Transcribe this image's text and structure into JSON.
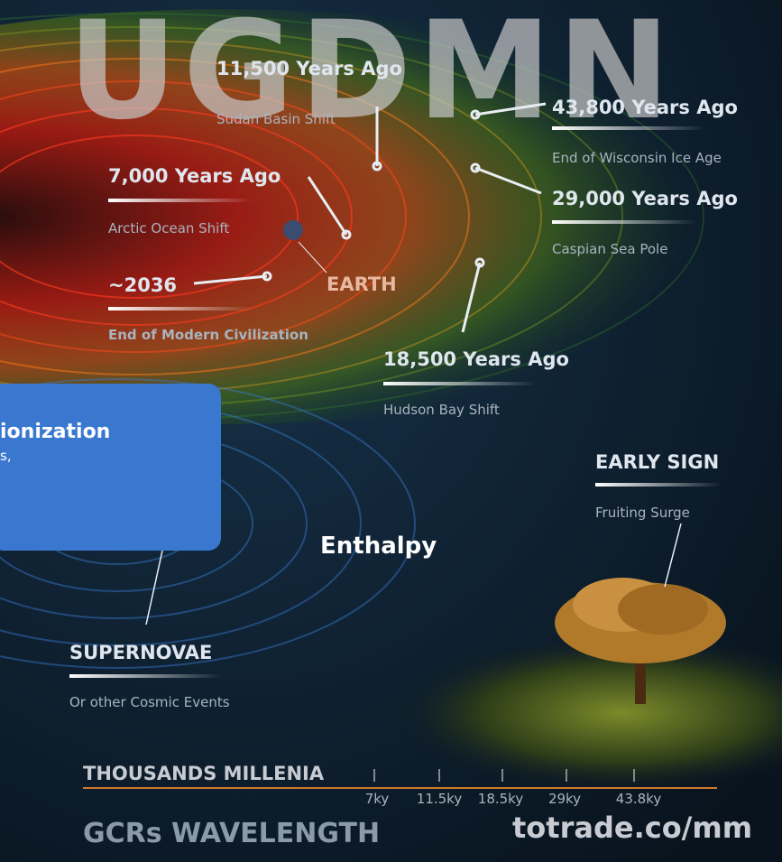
{
  "watermark": "UGDMN",
  "events": [
    {
      "title": "11,500 Years Ago",
      "subtitle": "Sudan Basin Shift"
    },
    {
      "title": "43,800 Years Ago",
      "subtitle": "End of Wisconsin Ice Age"
    },
    {
      "title": "7,000 Years Ago",
      "subtitle": "Arctic Ocean Shift"
    },
    {
      "title": "29,000 Years Ago",
      "subtitle": "Caspian Sea Pole"
    },
    {
      "title": "~2036",
      "subtitle": "End of Modern Civilization"
    },
    {
      "title": "18,500 Years Ago",
      "subtitle": "Hudson Bay Shift"
    }
  ],
  "earth_label": "EARTH",
  "card": {
    "title": "ionization",
    "subtitle": "s,"
  },
  "center_label": "Enthalpy",
  "early_sign": {
    "title": "EARLY SIGN",
    "subtitle": "Fruiting Surge"
  },
  "supernovae": {
    "title": "SUPERNOVAE",
    "subtitle": "Or other Cosmic Events"
  },
  "timeline": {
    "title": "THOUSANDS MILLENIA",
    "labels": [
      "7ky",
      "11.5ky",
      "18.5ky",
      "29ky",
      "43.8ky"
    ]
  },
  "footer": {
    "left": "GCRs WAVELENGTH",
    "right": "totrade.co/mm"
  }
}
